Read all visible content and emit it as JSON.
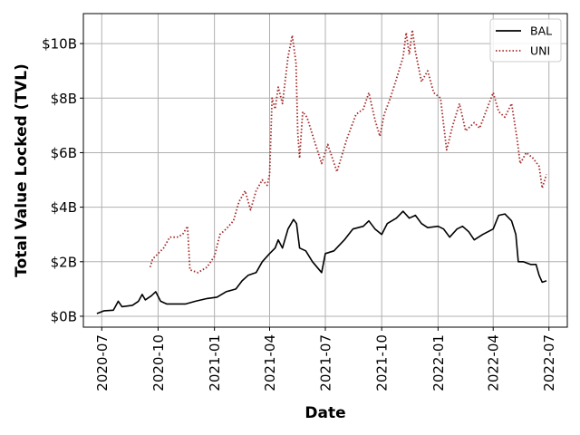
{
  "chart_data": {
    "type": "line",
    "title": "",
    "xlabel": "Date",
    "ylabel": "Total Value Locked (TVL)",
    "xlim": [
      "2020-06-01",
      "2022-07-31"
    ],
    "ylim": [
      -0.4,
      11.1
    ],
    "x_ticks": [
      "2020-07",
      "2020-10",
      "2021-01",
      "2021-04",
      "2021-07",
      "2021-10",
      "2022-01",
      "2022-04",
      "2022-07"
    ],
    "y_ticks": [
      {
        "value": 0,
        "label": "$0B"
      },
      {
        "value": 2,
        "label": "$2B"
      },
      {
        "value": 4,
        "label": "$4B"
      },
      {
        "value": 6,
        "label": "$6B"
      },
      {
        "value": 8,
        "label": "$8B"
      },
      {
        "value": 10,
        "label": "$10B"
      }
    ],
    "grid": true,
    "legend_position": "top-right",
    "y_unit": "billion USD",
    "series": [
      {
        "name": "BAL",
        "color": "#000000",
        "style": "solid",
        "points": [
          [
            "2020-06-23",
            0.1
          ],
          [
            "2020-07-05",
            0.2
          ],
          [
            "2020-07-20",
            0.22
          ],
          [
            "2020-07-28",
            0.55
          ],
          [
            "2020-08-03",
            0.35
          ],
          [
            "2020-08-20",
            0.4
          ],
          [
            "2020-08-30",
            0.55
          ],
          [
            "2020-09-05",
            0.8
          ],
          [
            "2020-09-10",
            0.6
          ],
          [
            "2020-09-20",
            0.75
          ],
          [
            "2020-09-27",
            0.9
          ],
          [
            "2020-10-05",
            0.55
          ],
          [
            "2020-10-15",
            0.45
          ],
          [
            "2020-11-01",
            0.45
          ],
          [
            "2020-11-15",
            0.45
          ],
          [
            "2020-12-01",
            0.55
          ],
          [
            "2020-12-20",
            0.65
          ],
          [
            "2021-01-05",
            0.7
          ],
          [
            "2021-01-20",
            0.9
          ],
          [
            "2021-02-05",
            1.0
          ],
          [
            "2021-02-15",
            1.3
          ],
          [
            "2021-02-25",
            1.5
          ],
          [
            "2021-03-10",
            1.6
          ],
          [
            "2021-03-20",
            2.0
          ],
          [
            "2021-04-01",
            2.3
          ],
          [
            "2021-04-10",
            2.5
          ],
          [
            "2021-04-15",
            2.8
          ],
          [
            "2021-04-22",
            2.5
          ],
          [
            "2021-05-01",
            3.2
          ],
          [
            "2021-05-10",
            3.55
          ],
          [
            "2021-05-15",
            3.4
          ],
          [
            "2021-05-20",
            2.5
          ],
          [
            "2021-05-30",
            2.4
          ],
          [
            "2021-06-10",
            2.0
          ],
          [
            "2021-06-25",
            1.6
          ],
          [
            "2021-07-01",
            2.3
          ],
          [
            "2021-07-15",
            2.4
          ],
          [
            "2021-08-01",
            2.8
          ],
          [
            "2021-08-15",
            3.2
          ],
          [
            "2021-09-01",
            3.3
          ],
          [
            "2021-09-10",
            3.5
          ],
          [
            "2021-09-20",
            3.2
          ],
          [
            "2021-10-01",
            3.0
          ],
          [
            "2021-10-10",
            3.4
          ],
          [
            "2021-10-25",
            3.6
          ],
          [
            "2021-11-05",
            3.85
          ],
          [
            "2021-11-15",
            3.6
          ],
          [
            "2021-11-25",
            3.7
          ],
          [
            "2021-12-05",
            3.4
          ],
          [
            "2021-12-15",
            3.25
          ],
          [
            "2022-01-01",
            3.3
          ],
          [
            "2022-01-10",
            3.2
          ],
          [
            "2022-01-20",
            2.9
          ],
          [
            "2022-02-01",
            3.2
          ],
          [
            "2022-02-10",
            3.3
          ],
          [
            "2022-02-20",
            3.1
          ],
          [
            "2022-03-01",
            2.8
          ],
          [
            "2022-03-15",
            3.0
          ],
          [
            "2022-04-01",
            3.2
          ],
          [
            "2022-04-10",
            3.7
          ],
          [
            "2022-04-20",
            3.75
          ],
          [
            "2022-05-01",
            3.5
          ],
          [
            "2022-05-08",
            3.0
          ],
          [
            "2022-05-12",
            2.0
          ],
          [
            "2022-05-20",
            2.0
          ],
          [
            "2022-06-01",
            1.9
          ],
          [
            "2022-06-10",
            1.9
          ],
          [
            "2022-06-15",
            1.5
          ],
          [
            "2022-06-20",
            1.25
          ],
          [
            "2022-06-27",
            1.3
          ]
        ]
      },
      {
        "name": "UNI",
        "color": "#a52a2a",
        "style": "dotted",
        "points": [
          [
            "2020-09-18",
            1.8
          ],
          [
            "2020-09-22",
            2.1
          ],
          [
            "2020-10-01",
            2.3
          ],
          [
            "2020-10-10",
            2.5
          ],
          [
            "2020-10-20",
            2.9
          ],
          [
            "2020-11-01",
            2.9
          ],
          [
            "2020-11-10",
            3.0
          ],
          [
            "2020-11-18",
            3.3
          ],
          [
            "2020-11-22",
            1.7
          ],
          [
            "2020-12-05",
            1.6
          ],
          [
            "2020-12-20",
            1.8
          ],
          [
            "2021-01-01",
            2.2
          ],
          [
            "2021-01-10",
            3.0
          ],
          [
            "2021-01-20",
            3.2
          ],
          [
            "2021-02-01",
            3.5
          ],
          [
            "2021-02-10",
            4.2
          ],
          [
            "2021-02-20",
            4.6
          ],
          [
            "2021-03-01",
            3.9
          ],
          [
            "2021-03-10",
            4.6
          ],
          [
            "2021-03-20",
            5.0
          ],
          [
            "2021-03-28",
            4.8
          ],
          [
            "2021-04-01",
            5.2
          ],
          [
            "2021-04-05",
            8.0
          ],
          [
            "2021-04-10",
            7.6
          ],
          [
            "2021-04-15",
            8.4
          ],
          [
            "2021-04-22",
            7.8
          ],
          [
            "2021-05-01",
            9.5
          ],
          [
            "2021-05-08",
            10.3
          ],
          [
            "2021-05-14",
            9.3
          ],
          [
            "2021-05-17",
            6.7
          ],
          [
            "2021-05-20",
            5.8
          ],
          [
            "2021-05-25",
            7.5
          ],
          [
            "2021-06-01",
            7.3
          ],
          [
            "2021-06-15",
            6.3
          ],
          [
            "2021-06-25",
            5.6
          ],
          [
            "2021-07-05",
            6.3
          ],
          [
            "2021-07-20",
            5.3
          ],
          [
            "2021-08-05",
            6.5
          ],
          [
            "2021-08-20",
            7.4
          ],
          [
            "2021-09-01",
            7.6
          ],
          [
            "2021-09-10",
            8.2
          ],
          [
            "2021-09-20",
            7.2
          ],
          [
            "2021-09-28",
            6.6
          ],
          [
            "2021-10-05",
            7.4
          ],
          [
            "2021-10-15",
            8.0
          ],
          [
            "2021-10-25",
            8.7
          ],
          [
            "2021-11-05",
            9.5
          ],
          [
            "2021-11-10",
            10.4
          ],
          [
            "2021-11-15",
            9.6
          ],
          [
            "2021-11-20",
            10.5
          ],
          [
            "2021-11-25",
            9.7
          ],
          [
            "2021-12-05",
            8.6
          ],
          [
            "2021-12-15",
            9.0
          ],
          [
            "2021-12-25",
            8.2
          ],
          [
            "2022-01-05",
            8.0
          ],
          [
            "2022-01-15",
            6.1
          ],
          [
            "2022-01-25",
            7.0
          ],
          [
            "2022-02-05",
            7.8
          ],
          [
            "2022-02-15",
            6.8
          ],
          [
            "2022-03-01",
            7.1
          ],
          [
            "2022-03-10",
            6.9
          ],
          [
            "2022-03-20",
            7.5
          ],
          [
            "2022-04-01",
            8.2
          ],
          [
            "2022-04-10",
            7.5
          ],
          [
            "2022-04-20",
            7.3
          ],
          [
            "2022-05-01",
            7.8
          ],
          [
            "2022-05-10",
            6.5
          ],
          [
            "2022-05-15",
            5.6
          ],
          [
            "2022-05-25",
            6.0
          ],
          [
            "2022-06-05",
            5.8
          ],
          [
            "2022-06-15",
            5.5
          ],
          [
            "2022-06-20",
            4.7
          ],
          [
            "2022-06-27",
            5.2
          ]
        ]
      }
    ]
  }
}
